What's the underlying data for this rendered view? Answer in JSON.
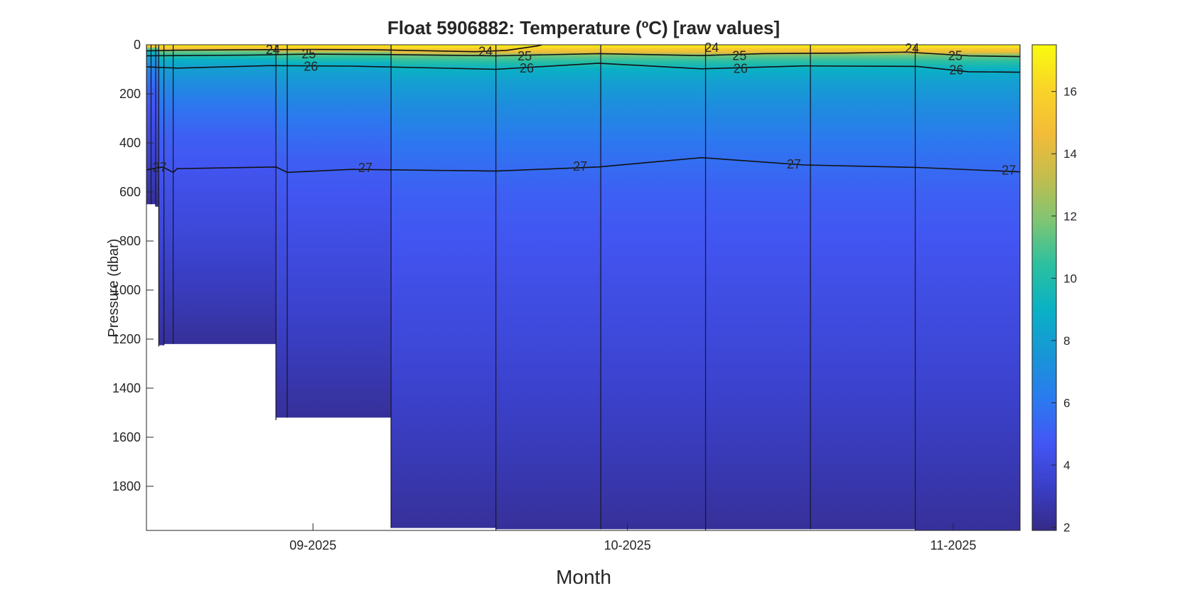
{
  "chart_data": {
    "type": "heatmap",
    "title": "Float  5906882:  Temperature  (ºC)  [raw  values]",
    "xlabel": "Month",
    "ylabel": "Pressure (dbar)",
    "ylim": [
      0,
      1980
    ],
    "y_reversed": true,
    "yticks": [
      0,
      200,
      400,
      600,
      800,
      1000,
      1200,
      1400,
      1600,
      1800
    ],
    "x_range_days": [
      0,
      85
    ],
    "xticks": [
      {
        "day": 16.2,
        "label": "09-2025"
      },
      {
        "day": 46.8,
        "label": "10-2025"
      },
      {
        "day": 78.5,
        "label": "11-2025"
      }
    ],
    "profiles": [
      {
        "day": 0.0,
        "max_pressure": 650
      },
      {
        "day": 0.45,
        "max_pressure": 650
      },
      {
        "day": 0.9,
        "max_pressure": 660
      },
      {
        "day": 1.2,
        "max_pressure": 1230
      },
      {
        "day": 1.7,
        "max_pressure": 1225
      },
      {
        "day": 2.6,
        "max_pressure": 1220
      },
      {
        "day": 12.6,
        "max_pressure": 1530
      },
      {
        "day": 13.7,
        "max_pressure": 1520
      },
      {
        "day": 23.8,
        "max_pressure": 1970
      },
      {
        "day": 34.0,
        "max_pressure": 1980
      },
      {
        "day": 44.2,
        "max_pressure": 1975
      },
      {
        "day": 54.4,
        "max_pressure": 1980
      },
      {
        "day": 64.6,
        "max_pressure": 1975
      },
      {
        "day": 74.8,
        "max_pressure": 1980
      },
      {
        "day": 85.0,
        "max_pressure": 1980
      }
    ],
    "colorbar": {
      "range": [
        1.9,
        17.5
      ],
      "ticks": [
        2,
        4,
        6,
        8,
        10,
        12,
        14,
        16
      ],
      "colormap": "parula",
      "colors": [
        "#352A87",
        "#3A3FC7",
        "#4357F5",
        "#2A7BEF",
        "#1896D6",
        "#0AB1C5",
        "#2AC0A0",
        "#7EC574",
        "#C3BD4E",
        "#F3BC38",
        "#F9D428",
        "#F9FB0E"
      ]
    },
    "temperature_profile": [
      {
        "pressure": 0,
        "temp": 17.2
      },
      {
        "pressure": 15,
        "temp": 15.8
      },
      {
        "pressure": 30,
        "temp": 14.5
      },
      {
        "pressure": 45,
        "temp": 11.5
      },
      {
        "pressure": 70,
        "temp": 10.2
      },
      {
        "pressure": 100,
        "temp": 9.0
      },
      {
        "pressure": 150,
        "temp": 8.1
      },
      {
        "pressure": 250,
        "temp": 7.1
      },
      {
        "pressure": 400,
        "temp": 6.0
      },
      {
        "pressure": 600,
        "temp": 5.1
      },
      {
        "pressure": 800,
        "temp": 4.6
      },
      {
        "pressure": 1000,
        "temp": 4.2
      },
      {
        "pressure": 1200,
        "temp": 3.9
      },
      {
        "pressure": 1400,
        "temp": 3.5
      },
      {
        "pressure": 1600,
        "temp": 3.1
      },
      {
        "pressure": 1800,
        "temp": 2.7
      },
      {
        "pressure": 1980,
        "temp": 2.3
      }
    ],
    "contours": [
      {
        "level": "24",
        "points": [
          [
            0,
            25
          ],
          [
            3,
            22
          ],
          [
            10,
            20
          ],
          [
            16,
            19
          ],
          [
            22,
            20
          ],
          [
            27,
            24
          ],
          [
            32,
            28
          ],
          [
            35,
            23
          ],
          [
            38,
            5
          ],
          [
            38.5,
            0
          ]
        ],
        "labels": [
          {
            "day": 12.3,
            "pressure": 20
          },
          {
            "day": 33.0,
            "pressure": 28
          },
          {
            "day": 55.0,
            "pressure": 12
          },
          {
            "day": 74.5,
            "pressure": 14
          }
        ]
      },
      {
        "level": "25",
        "points": [
          [
            0,
            45
          ],
          [
            3,
            44
          ],
          [
            10,
            42
          ],
          [
            16,
            38
          ],
          [
            24,
            40
          ],
          [
            34,
            45
          ],
          [
            44,
            36
          ],
          [
            54,
            44
          ],
          [
            60,
            36
          ],
          [
            68,
            34
          ],
          [
            74,
            30
          ],
          [
            80,
            45
          ],
          [
            85,
            48
          ]
        ],
        "labels": [
          {
            "day": 15.8,
            "pressure": 38
          },
          {
            "day": 36.8,
            "pressure": 46
          },
          {
            "day": 57.7,
            "pressure": 45
          },
          {
            "day": 78.7,
            "pressure": 45
          }
        ]
      },
      {
        "level": "26",
        "points": [
          [
            0,
            90
          ],
          [
            3,
            95
          ],
          [
            12,
            85
          ],
          [
            20,
            87
          ],
          [
            34,
            100
          ],
          [
            44,
            75
          ],
          [
            54,
            98
          ],
          [
            64,
            86
          ],
          [
            75,
            88
          ],
          [
            80,
            110
          ],
          [
            85,
            112
          ]
        ],
        "labels": [
          {
            "day": 16.0,
            "pressure": 88
          },
          {
            "day": 37.0,
            "pressure": 96
          },
          {
            "day": 57.8,
            "pressure": 97
          },
          {
            "day": 78.8,
            "pressure": 103
          }
        ]
      },
      {
        "level": "27",
        "points": [
          [
            0,
            510
          ],
          [
            1.6,
            498
          ],
          [
            2.6,
            520
          ],
          [
            3,
            505
          ],
          [
            12.6,
            498
          ],
          [
            13.7,
            520
          ],
          [
            20,
            508
          ],
          [
            34,
            515
          ],
          [
            44,
            498
          ],
          [
            54,
            460
          ],
          [
            64,
            490
          ],
          [
            75,
            500
          ],
          [
            85,
            518
          ]
        ],
        "labels": [
          {
            "day": 1.3,
            "pressure": 500
          },
          {
            "day": 21.3,
            "pressure": 502
          },
          {
            "day": 42.2,
            "pressure": 496
          },
          {
            "day": 63.0,
            "pressure": 487
          },
          {
            "day": 83.9,
            "pressure": 512
          }
        ]
      }
    ]
  }
}
